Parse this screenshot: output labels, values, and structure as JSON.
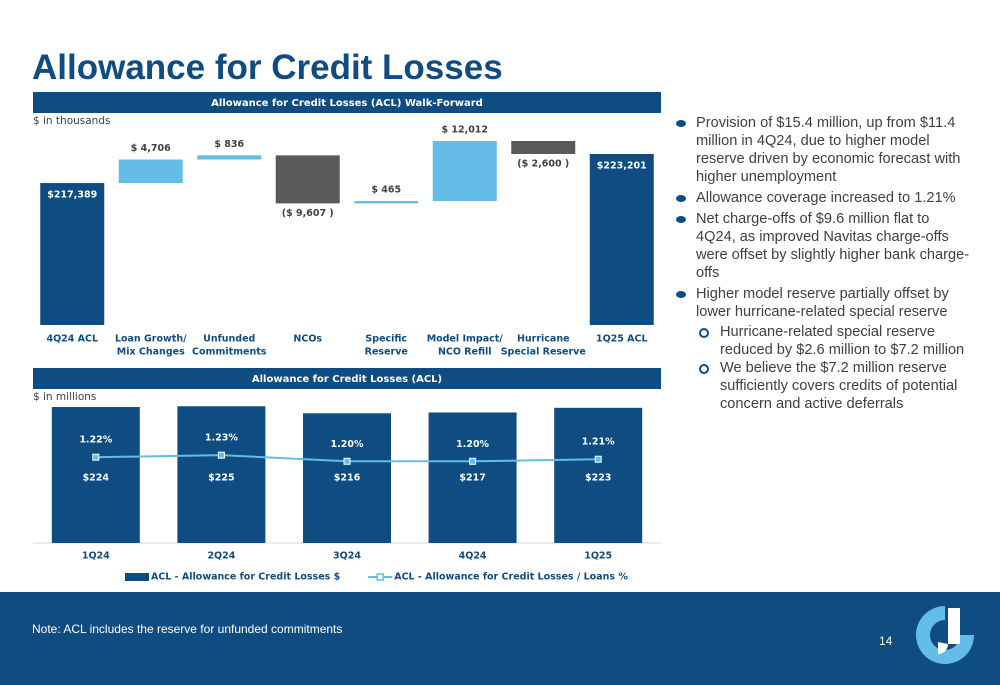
{
  "title": "Allowance for Credit Losses",
  "chart_data": [
    {
      "type": "waterfall",
      "title": "Allowance for Credit Losses (ACL) Walk-Forward",
      "subtitle": "$ in thousands",
      "categories": [
        [
          "4Q24 ACL"
        ],
        [
          "Loan Growth/",
          "Mix Changes"
        ],
        [
          "Unfunded",
          "Commitments"
        ],
        [
          "NCOs"
        ],
        [
          "Specific",
          "Reserve"
        ],
        [
          "Model Impact/",
          "NCO Refill"
        ],
        [
          "Hurricane",
          "Special Reserve"
        ],
        [
          "1Q25 ACL"
        ]
      ],
      "values": [
        217389,
        4706,
        836,
        -9607,
        465,
        12012,
        -2600,
        223201
      ],
      "value_labels": [
        "$217,389",
        "$ 4,706",
        "$ 836",
        "($ 9,607 )",
        "$ 465",
        "$ 12,012",
        "($ 2,600 )",
        "$223,201"
      ],
      "totals": [
        0,
        7
      ],
      "colors": {
        "total": "#0f4c81",
        "increase": "#63bde6",
        "decrease": "#595959"
      },
      "ylim": [
        189000,
        231000
      ]
    },
    {
      "type": "bar-line",
      "title": "Allowance for Credit Losses (ACL)",
      "subtitle": "$ in millions",
      "categories": [
        "1Q24",
        "2Q24",
        "3Q24",
        "4Q24",
        "1Q25"
      ],
      "series": [
        {
          "name": "ACL - Allowance for Credit Losses $",
          "type": "bar",
          "color": "#0f4c81",
          "values": [
            224,
            225,
            216,
            217,
            223
          ],
          "value_labels": [
            "$224",
            "$225",
            "$216",
            "$217",
            "$223"
          ]
        },
        {
          "name": "ACL - Allowance for Credit Losses / Loans %",
          "type": "line",
          "axis": "y2",
          "color": "#63bde6",
          "values": [
            1.22,
            1.23,
            1.2,
            1.2,
            1.21
          ],
          "value_labels": [
            "1.22%",
            "1.23%",
            "1.20%",
            "1.20%",
            "1.21%"
          ]
        }
      ],
      "ylim": [
        50,
        233
      ],
      "y2lim": [
        0.8,
        1.5
      ],
      "legend": "bottom"
    }
  ],
  "bullets": [
    {
      "text": "Provision of $15.4 million, up from $11.4 million in 4Q24, due to higher model reserve driven by economic forecast with higher unemployment"
    },
    {
      "text": "Allowance coverage increased to 1.21%"
    },
    {
      "text": "Net charge-offs of $9.6 million flat to 4Q24, as improved Navitas charge-offs were offset by slightly higher bank charge-offs"
    },
    {
      "text": "Higher model reserve partially offset by lower hurricane-related special reserve",
      "sub": [
        "Hurricane-related special reserve reduced by $2.6 million to $7.2 million",
        "We believe the $7.2 million reserve sufficiently covers credits of potential concern and active deferrals"
      ]
    }
  ],
  "footnote": "Note: ACL includes the reserve for unfunded commitments",
  "page_number": 14
}
